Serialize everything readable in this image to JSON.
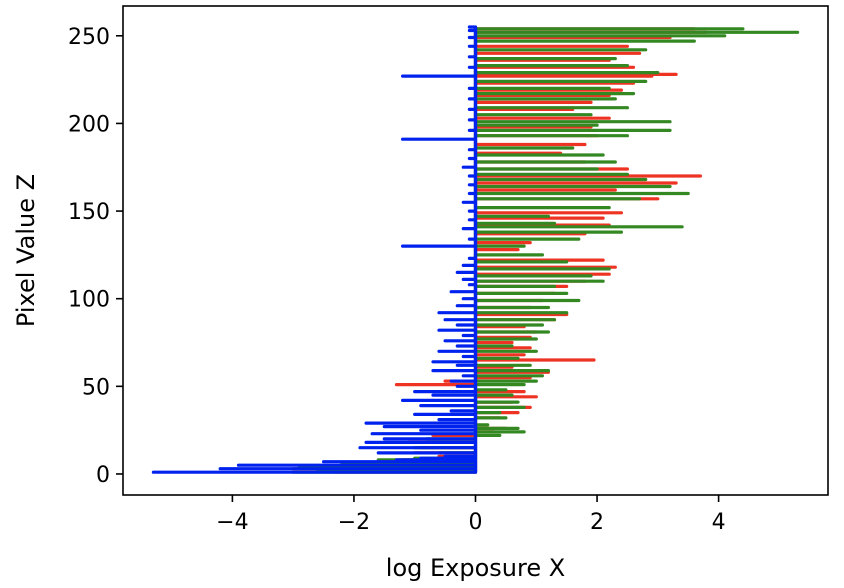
{
  "chart_data": {
    "type": "line",
    "title": "",
    "xlabel": "log Exposure X",
    "ylabel": "Pixel Value Z",
    "xlim": [
      -5.8,
      5.8
    ],
    "ylim": [
      -12,
      267
    ],
    "xticks": [
      -4,
      -2,
      0,
      2,
      4
    ],
    "xtick_labels": [
      "−4",
      "−2",
      "0",
      "2",
      "4"
    ],
    "yticks": [
      0,
      50,
      100,
      150,
      200,
      250
    ],
    "ytick_labels": [
      "0",
      "50",
      "100",
      "150",
      "200",
      "250"
    ],
    "grid": false,
    "legend": false,
    "series": [
      {
        "color": "#ee3322",
        "points": [
          [
            -2.3,
            1
          ],
          [
            -2.2,
            2
          ],
          [
            -3.0,
            3
          ],
          [
            -2.6,
            4
          ],
          [
            -1.8,
            6
          ],
          [
            -1.2,
            8
          ],
          [
            -0.6,
            10
          ],
          [
            -1.0,
            12
          ],
          [
            -0.9,
            15
          ],
          [
            -1.1,
            18
          ],
          [
            -0.7,
            22
          ],
          [
            0.3,
            24
          ],
          [
            0.5,
            26
          ],
          [
            0.0,
            28
          ],
          [
            0.4,
            32
          ],
          [
            0.7,
            35
          ],
          [
            0.9,
            38
          ],
          [
            0.6,
            41
          ],
          [
            1.0,
            44
          ],
          [
            0.8,
            47
          ],
          [
            -1.3,
            51
          ],
          [
            -0.5,
            53
          ],
          [
            0.9,
            55
          ],
          [
            1.2,
            58
          ],
          [
            0.6,
            61
          ],
          [
            1.95,
            65
          ],
          [
            0.8,
            68
          ],
          [
            0.9,
            72
          ],
          [
            0.6,
            75
          ],
          [
            0.9,
            78
          ],
          [
            1.0,
            81
          ],
          [
            0.8,
            84
          ],
          [
            1.3,
            88
          ],
          [
            1.5,
            91
          ],
          [
            0.9,
            95
          ],
          [
            1.1,
            99
          ],
          [
            1.3,
            103
          ],
          [
            1.5,
            107
          ],
          [
            1.8,
            110
          ],
          [
            2.2,
            114
          ],
          [
            2.3,
            118
          ],
          [
            2.1,
            122
          ],
          [
            0.7,
            128
          ],
          [
            0.9,
            132
          ],
          [
            1.8,
            137
          ],
          [
            2.2,
            142
          ],
          [
            2.1,
            146
          ],
          [
            2.4,
            149
          ],
          [
            3.0,
            157
          ],
          [
            2.3,
            162
          ],
          [
            3.3,
            166
          ],
          [
            3.7,
            170
          ],
          [
            2.5,
            174
          ],
          [
            1.8,
            178
          ],
          [
            1.4,
            183
          ],
          [
            1.8,
            188
          ],
          [
            2.0,
            193
          ],
          [
            1.9,
            198
          ],
          [
            2.2,
            203
          ],
          [
            1.6,
            208
          ],
          [
            1.9,
            212
          ],
          [
            2.2,
            216
          ],
          [
            2.4,
            219
          ],
          [
            2.6,
            223
          ],
          [
            2.9,
            227
          ],
          [
            3.3,
            228
          ],
          [
            2.6,
            232
          ],
          [
            2.2,
            236
          ],
          [
            2.7,
            240
          ],
          [
            2.5,
            244
          ],
          [
            3.2,
            249
          ],
          [
            3.8,
            252
          ],
          [
            3.6,
            254
          ]
        ]
      },
      {
        "color": "#338822",
        "points": [
          [
            -3.0,
            1
          ],
          [
            -2.6,
            2
          ],
          [
            -2.9,
            4
          ],
          [
            -2.2,
            6
          ],
          [
            -1.6,
            8
          ],
          [
            -1.0,
            9
          ],
          [
            -0.6,
            12
          ],
          [
            -1.0,
            15
          ],
          [
            -0.8,
            18
          ],
          [
            -0.8,
            20
          ],
          [
            0.4,
            22
          ],
          [
            0.8,
            24
          ],
          [
            0.7,
            26
          ],
          [
            0.2,
            28
          ],
          [
            0.5,
            32
          ],
          [
            0.4,
            35
          ],
          [
            0.8,
            38
          ],
          [
            0.7,
            41
          ],
          [
            0.6,
            45
          ],
          [
            0.5,
            48
          ],
          [
            0.8,
            51
          ],
          [
            1.0,
            53
          ],
          [
            1.1,
            56
          ],
          [
            1.2,
            59
          ],
          [
            0.9,
            62
          ],
          [
            0.7,
            66
          ],
          [
            1.0,
            70
          ],
          [
            0.6,
            73
          ],
          [
            1.0,
            77
          ],
          [
            1.2,
            81
          ],
          [
            1.1,
            85
          ],
          [
            1.3,
            88
          ],
          [
            1.5,
            92
          ],
          [
            1.2,
            95
          ],
          [
            1.7,
            99
          ],
          [
            1.5,
            103
          ],
          [
            1.3,
            107
          ],
          [
            2.1,
            110
          ],
          [
            1.9,
            113
          ],
          [
            2.2,
            117
          ],
          [
            1.5,
            121
          ],
          [
            1.1,
            125
          ],
          [
            0.8,
            130
          ],
          [
            1.7,
            134
          ],
          [
            2.4,
            138
          ],
          [
            3.4,
            141
          ],
          [
            1.3,
            143
          ],
          [
            1.2,
            147
          ],
          [
            2.2,
            152
          ],
          [
            2.7,
            157
          ],
          [
            3.5,
            160
          ],
          [
            3.2,
            164
          ],
          [
            2.8,
            168
          ],
          [
            2.5,
            171
          ],
          [
            2.0,
            174
          ],
          [
            2.3,
            178
          ],
          [
            2.1,
            182
          ],
          [
            1.6,
            186
          ],
          [
            2.5,
            193
          ],
          [
            3.2,
            196
          ],
          [
            2.0,
            199
          ],
          [
            3.2,
            201
          ],
          [
            1.9,
            205
          ],
          [
            2.5,
            209
          ],
          [
            2.3,
            214
          ],
          [
            2.6,
            217
          ],
          [
            2.2,
            220
          ],
          [
            2.8,
            224
          ],
          [
            3.0,
            229
          ],
          [
            2.5,
            233
          ],
          [
            2.3,
            237
          ],
          [
            2.8,
            242
          ],
          [
            3.6,
            247
          ],
          [
            4.1,
            250
          ],
          [
            5.3,
            252
          ],
          [
            4.4,
            254
          ],
          [
            3.2,
            254
          ]
        ]
      },
      {
        "color": "#0022ee",
        "points": [
          [
            -5.3,
            1
          ],
          [
            -4.2,
            3
          ],
          [
            -3.9,
            5
          ],
          [
            -2.5,
            7
          ],
          [
            -1.3,
            8
          ],
          [
            -0.9,
            9
          ],
          [
            -0.5,
            10
          ],
          [
            -1.6,
            12
          ],
          [
            -1.9,
            15
          ],
          [
            -1.8,
            18
          ],
          [
            -1.5,
            20
          ],
          [
            -1.7,
            23
          ],
          [
            -0.9,
            25
          ],
          [
            -1.5,
            27
          ],
          [
            -1.8,
            29
          ],
          [
            -0.6,
            31
          ],
          [
            -1.0,
            34
          ],
          [
            -0.4,
            36
          ],
          [
            -0.9,
            39
          ],
          [
            -1.2,
            42
          ],
          [
            -0.7,
            45
          ],
          [
            -1.0,
            47
          ],
          [
            -0.3,
            50
          ],
          [
            -0.4,
            53
          ],
          [
            -0.2,
            56
          ],
          [
            -0.7,
            59
          ],
          [
            -0.3,
            62
          ],
          [
            -0.7,
            64
          ],
          [
            -0.2,
            67
          ],
          [
            -0.6,
            70
          ],
          [
            -0.3,
            73
          ],
          [
            -0.5,
            76
          ],
          [
            -0.2,
            79
          ],
          [
            -0.6,
            82
          ],
          [
            -0.3,
            85
          ],
          [
            -0.5,
            88
          ],
          [
            -0.6,
            92
          ],
          [
            -0.3,
            96
          ],
          [
            -0.2,
            100
          ],
          [
            -0.4,
            104
          ],
          [
            -0.1,
            108
          ],
          [
            -0.2,
            111
          ],
          [
            -0.3,
            115
          ],
          [
            -0.2,
            119
          ],
          [
            -0.1,
            123
          ],
          [
            -1.2,
            130
          ],
          [
            -0.1,
            134
          ],
          [
            -0.2,
            140
          ],
          [
            -0.1,
            145
          ],
          [
            -0.1,
            150
          ],
          [
            -0.2,
            155
          ],
          [
            -0.1,
            160
          ],
          [
            -0.1,
            165
          ],
          [
            -0.1,
            170
          ],
          [
            -0.2,
            175
          ],
          [
            -0.1,
            180
          ],
          [
            -0.1,
            185
          ],
          [
            -1.2,
            191
          ],
          [
            -0.1,
            196
          ],
          [
            -0.1,
            202
          ],
          [
            -0.1,
            208
          ],
          [
            -0.1,
            214
          ],
          [
            -0.1,
            220
          ],
          [
            -1.2,
            227
          ],
          [
            -0.1,
            232
          ],
          [
            -0.1,
            238
          ],
          [
            -0.1,
            244
          ],
          [
            -0.1,
            249
          ],
          [
            -0.1,
            253
          ],
          [
            -0.1,
            255
          ]
        ]
      }
    ]
  }
}
